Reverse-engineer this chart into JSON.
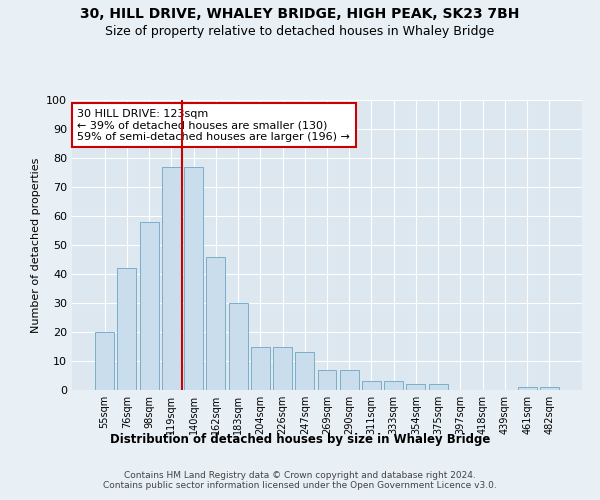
{
  "title1": "30, HILL DRIVE, WHALEY BRIDGE, HIGH PEAK, SK23 7BH",
  "title2": "Size of property relative to detached houses in Whaley Bridge",
  "xlabel": "Distribution of detached houses by size in Whaley Bridge",
  "ylabel": "Number of detached properties",
  "categories": [
    "55sqm",
    "76sqm",
    "98sqm",
    "119sqm",
    "140sqm",
    "162sqm",
    "183sqm",
    "204sqm",
    "226sqm",
    "247sqm",
    "269sqm",
    "290sqm",
    "311sqm",
    "333sqm",
    "354sqm",
    "375sqm",
    "397sqm",
    "418sqm",
    "439sqm",
    "461sqm",
    "482sqm"
  ],
  "values": [
    20,
    42,
    58,
    77,
    77,
    46,
    30,
    15,
    15,
    13,
    7,
    7,
    3,
    3,
    2,
    2,
    0,
    0,
    0,
    1,
    1
  ],
  "bar_color": "#c9dded",
  "bar_edge_color": "#7aafc9",
  "vline_x_index": 3.5,
  "vline_color": "#cc0000",
  "annotation_text": "30 HILL DRIVE: 123sqm\n← 39% of detached houses are smaller (130)\n59% of semi-detached houses are larger (196) →",
  "annotation_box_facecolor": "#ffffff",
  "annotation_box_edgecolor": "#cc0000",
  "bg_color": "#e8eff5",
  "plot_bg_color": "#dce7f0",
  "footer": "Contains HM Land Registry data © Crown copyright and database right 2024.\nContains public sector information licensed under the Open Government Licence v3.0.",
  "ylim": [
    0,
    100
  ],
  "yticks": [
    0,
    10,
    20,
    30,
    40,
    50,
    60,
    70,
    80,
    90,
    100
  ],
  "title1_fontsize": 10,
  "title2_fontsize": 9,
  "xlabel_fontsize": 8.5,
  "ylabel_fontsize": 8,
  "tick_fontsize": 8,
  "xtick_fontsize": 7,
  "annotation_fontsize": 8,
  "footer_fontsize": 6.5
}
